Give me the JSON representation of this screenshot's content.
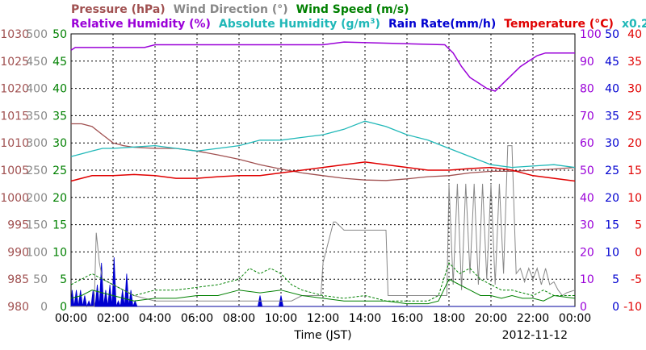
{
  "chart_data": {
    "type": "line",
    "date": "2012-11-12",
    "xlabel": "Time (JST)",
    "x_ticks": [
      "00:00",
      "02:00",
      "04:00",
      "06:00",
      "08:00",
      "10:00",
      "12:00",
      "14:00",
      "16:00",
      "18:00",
      "20:00",
      "22:00",
      "00:00"
    ],
    "xlim_hours": [
      0,
      24
    ],
    "grid": true,
    "legend": [
      {
        "key": "pressure",
        "label": "Pressure (hPa)",
        "color": "#a05050"
      },
      {
        "key": "wind_dir",
        "label": "Wind Direction (°)",
        "color": "#888888"
      },
      {
        "key": "wind_speed",
        "label": "Wind Speed (m/s)",
        "color": "#008000"
      },
      {
        "key": "rh",
        "label": "Relative Humidity (%)",
        "color": "#9a00d8"
      },
      {
        "key": "ah",
        "label": "Absolute Humidity (g/m",
        "sup": "3",
        "label_end": ")",
        "color": "#20b8b8"
      },
      {
        "key": "rain",
        "label": "Rain Rate(mm/h)",
        "color": "#0000d0"
      },
      {
        "key": "temp",
        "label": "Temperature (°C)",
        "color": "#e00000"
      },
      {
        "key": "ah_scale",
        "label": "x0.2",
        "color": "#20b8b8"
      }
    ],
    "axes": {
      "pressure": {
        "color": "#a05050",
        "range": [
          980,
          1030
        ],
        "ticks": [
          980,
          985,
          990,
          995,
          1000,
          1005,
          1010,
          1015,
          1020,
          1025,
          1030
        ]
      },
      "wind_dir": {
        "color": "#888888",
        "range": [
          0,
          500
        ],
        "ticks": [
          0,
          50,
          100,
          150,
          200,
          250,
          300,
          350,
          400,
          450,
          500
        ]
      },
      "wind_speed": {
        "color": "#008000",
        "range": [
          0,
          50
        ],
        "ticks": [
          0,
          5,
          10,
          15,
          20,
          25,
          30,
          35,
          40,
          45,
          50
        ]
      },
      "rh": {
        "color": "#9a00d8",
        "range": [
          0,
          100
        ],
        "ticks": [
          0,
          10,
          20,
          30,
          40,
          50,
          60,
          70,
          80,
          90,
          100
        ]
      },
      "rain": {
        "color": "#0000d0",
        "range": [
          0,
          50
        ],
        "ticks": [
          0,
          5,
          10,
          15,
          20,
          25,
          30,
          35,
          40,
          45,
          50
        ]
      },
      "temp": {
        "color": "#e00000",
        "range": [
          -10,
          40
        ],
        "ticks": [
          -10,
          -5,
          0,
          5,
          10,
          15,
          20,
          25,
          30,
          35,
          40
        ]
      }
    },
    "series": {
      "pressure": {
        "x": [
          0,
          0.5,
          1,
          1.5,
          2,
          2.5,
          3,
          4,
          5,
          6,
          7,
          8,
          9,
          10,
          11,
          12,
          13,
          14,
          15,
          16,
          17,
          18,
          19,
          20,
          21,
          22,
          23,
          24
        ],
        "y": [
          1013.5,
          1013.5,
          1013,
          1011.5,
          1010,
          1009.5,
          1009.2,
          1009,
          1009,
          1008.5,
          1007.8,
          1007,
          1006,
          1005.2,
          1004.5,
          1004,
          1003.5,
          1003.2,
          1003.1,
          1003.4,
          1003.8,
          1004,
          1004.5,
          1004.8,
          1004.8,
          1005,
          1005.2,
          1005.5
        ]
      },
      "wind_dir": {
        "x": [
          0,
          1.1,
          1.2,
          1.35,
          1.5,
          2,
          2.5,
          3,
          3.5,
          4,
          10.5,
          11,
          11.9,
          12,
          12.5,
          12.6,
          13,
          14,
          15,
          15.1,
          17.9,
          18,
          18.2,
          18.4,
          18.6,
          18.8,
          19,
          19.2,
          19.4,
          19.6,
          19.8,
          20,
          20.2,
          20.4,
          20.6,
          20.8,
          21,
          21.2,
          21.4,
          21.6,
          21.8,
          22,
          22.2,
          22.4,
          22.6,
          22.8,
          23,
          23.2,
          23.4,
          23.6,
          24
        ],
        "y": [
          0,
          0,
          135,
          80,
          50,
          40,
          30,
          20,
          15,
          10,
          10,
          20,
          20,
          80,
          155,
          155,
          140,
          140,
          140,
          20,
          20,
          225,
          40,
          225,
          30,
          225,
          60,
          225,
          40,
          225,
          50,
          225,
          40,
          225,
          60,
          295,
          295,
          60,
          70,
          45,
          70,
          50,
          70,
          40,
          70,
          40,
          45,
          30,
          20,
          25,
          30
        ]
      },
      "wind_speed": {
        "x": [
          0,
          0.5,
          1,
          1.5,
          2,
          2.5,
          3,
          4,
          5,
          6,
          7,
          8,
          9,
          10,
          11,
          12,
          13,
          14,
          15,
          16,
          17,
          17.5,
          18,
          18.5,
          19,
          19.5,
          20,
          20.5,
          21,
          21.5,
          22,
          22.5,
          23,
          24
        ],
        "y": [
          1.5,
          2,
          3,
          2.5,
          2,
          1.5,
          1,
          1.5,
          1.5,
          2,
          2,
          3,
          2.5,
          3,
          2,
          1.5,
          1,
          1,
          1,
          0.5,
          0.5,
          1,
          5,
          4,
          3,
          2,
          2,
          1.5,
          2,
          1.5,
          1.5,
          1,
          2,
          1.5
        ]
      },
      "wind_gust": {
        "x": [
          0,
          0.5,
          1,
          1.5,
          2,
          2.5,
          3,
          4,
          5,
          6,
          7,
          8,
          8.5,
          9,
          9.5,
          10,
          10.5,
          11,
          12,
          13,
          14,
          15,
          16,
          17,
          17.5,
          18,
          18.5,
          19,
          19.5,
          20,
          20.5,
          21,
          21.5,
          22,
          22.5,
          23,
          24
        ],
        "y": [
          4,
          5,
          6,
          5,
          4,
          3,
          2,
          3,
          3,
          3.5,
          4,
          5,
          7,
          6,
          7,
          6,
          4,
          3,
          2,
          1.5,
          2,
          1,
          1,
          1,
          2,
          8,
          6,
          7,
          5,
          4,
          3,
          3,
          2.5,
          2,
          3,
          2,
          2
        ]
      },
      "rh": {
        "x": [
          0,
          0.2,
          2,
          3.5,
          4,
          12,
          13,
          17.8,
          18.2,
          18.6,
          19,
          19.4,
          19.8,
          20.2,
          20.6,
          21,
          21.4,
          21.8,
          22.2,
          22.6,
          23,
          23.5,
          24
        ],
        "y": [
          94,
          95,
          95,
          95,
          96,
          96,
          97,
          96,
          93,
          88,
          84,
          82,
          80,
          79,
          82,
          85,
          88,
          90,
          92,
          93,
          93,
          93,
          93
        ]
      },
      "ah_x5": {
        "x": [
          0,
          0.5,
          1,
          1.5,
          2,
          3,
          4,
          5,
          6,
          7,
          8,
          9,
          10,
          11,
          12,
          13,
          14,
          14.5,
          15,
          16,
          17,
          18,
          19,
          20,
          21,
          22,
          23,
          24
        ],
        "y": [
          55,
          56,
          57,
          58,
          58,
          58.5,
          59,
          58,
          57,
          58,
          59,
          61,
          61,
          62,
          63,
          65,
          68,
          67,
          66,
          63,
          61,
          58,
          55,
          52,
          51,
          51.5,
          52,
          51
        ]
      },
      "temp": {
        "x": [
          0,
          0.5,
          1,
          2,
          3,
          4,
          5,
          6,
          7,
          8,
          9,
          10,
          11,
          12,
          13,
          14,
          15,
          16,
          17,
          18,
          19,
          20,
          21,
          22,
          23,
          24
        ],
        "y": [
          13,
          13.5,
          14,
          14,
          14.2,
          14,
          13.5,
          13.5,
          13.8,
          14,
          14,
          14.5,
          15,
          15.5,
          16,
          16.5,
          16,
          15.5,
          15,
          15,
          15.3,
          15.5,
          15,
          14,
          13.5,
          13
        ]
      },
      "rain": {
        "x": [
          0,
          0.05,
          0.15,
          0.25,
          0.35,
          0.45,
          0.55,
          0.65,
          0.75,
          0.85,
          0.95,
          1.05,
          1.15,
          1.25,
          1.35,
          1.45,
          1.55,
          1.65,
          1.75,
          1.85,
          1.95,
          2.05,
          2.15,
          2.25,
          2.35,
          2.45,
          2.55,
          2.65,
          2.75,
          2.85,
          2.95,
          3.05,
          3.15,
          3.25,
          8.9,
          9.0,
          9.1,
          9.9,
          10.0,
          10.1,
          24
        ],
        "y": [
          0,
          3,
          0,
          3,
          0,
          3,
          0,
          2,
          0,
          1,
          0,
          3,
          0,
          4,
          0,
          8,
          0,
          3,
          0,
          4,
          0,
          9,
          0,
          1,
          0,
          3,
          0,
          6,
          0,
          3,
          0,
          1,
          0,
          0,
          0,
          2,
          0,
          0,
          2,
          0,
          0
        ]
      }
    }
  }
}
